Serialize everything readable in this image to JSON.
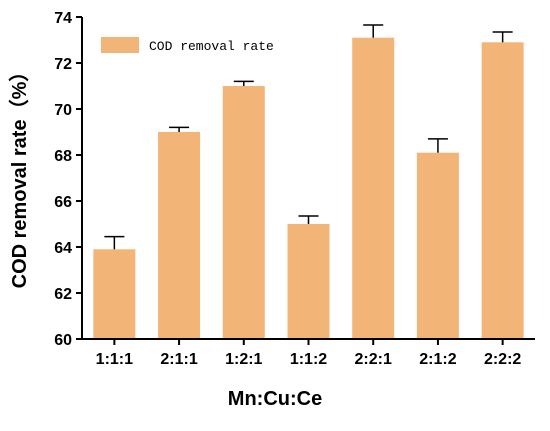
{
  "chart_data": {
    "type": "bar",
    "categories": [
      "1:1:1",
      "2:1:1",
      "1:2:1",
      "1:1:2",
      "2:2:1",
      "2:1:2",
      "2:2:2"
    ],
    "series": [
      {
        "name": "COD removal rate",
        "values": [
          63.9,
          69.0,
          71.0,
          65.0,
          73.1,
          68.1,
          72.9
        ],
        "error": [
          0.55,
          0.2,
          0.2,
          0.35,
          0.55,
          0.6,
          0.45
        ]
      }
    ],
    "xlabel": "Mn:Cu:Ce",
    "ylabel": "COD removal rate（%）",
    "ylim": [
      60,
      74
    ],
    "yticks": [
      60,
      62,
      64,
      66,
      68,
      70,
      72,
      74
    ],
    "legend_position": "top-left",
    "grid": false
  },
  "colors": {
    "bar": "#f2b577",
    "axis": "#000000",
    "error_bar": "#000000"
  }
}
